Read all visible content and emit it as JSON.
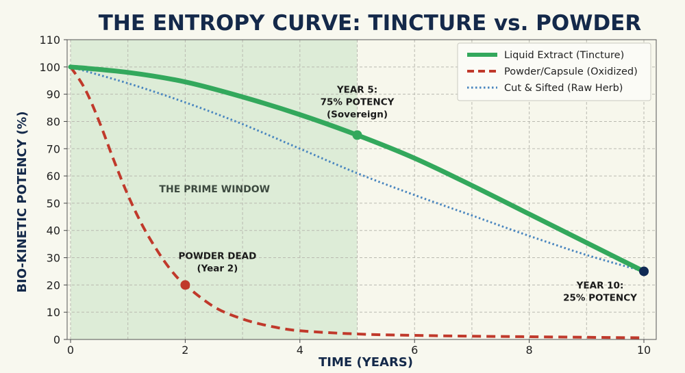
{
  "chart_data": {
    "type": "line",
    "title": "THE ENTROPY CURVE: TINCTURE vs. POWDER",
    "xlabel": "TIME (YEARS)",
    "ylabel": "BIO-KINETIC POTENCY (%)",
    "xlim": [
      0,
      10
    ],
    "ylim": [
      0,
      110
    ],
    "xticks": [
      0,
      2,
      4,
      6,
      8,
      10
    ],
    "yticks": [
      0,
      10,
      20,
      30,
      40,
      50,
      60,
      70,
      80,
      90,
      100,
      110
    ],
    "grid": true,
    "legend_position": "top-right",
    "shaded_region": {
      "x": [
        0,
        5
      ],
      "label": "THE PRIME WINDOW",
      "color": "#d8ead4"
    },
    "series": [
      {
        "name": "Liquid Extract (Tincture)",
        "style": "solid",
        "color": "#33a85c",
        "x": [
          0,
          1,
          2,
          3,
          4,
          5,
          6,
          7,
          8,
          9,
          10
        ],
        "y": [
          100,
          98,
          94.5,
          89,
          82.5,
          75,
          66.5,
          56.5,
          46,
          35.5,
          25
        ]
      },
      {
        "name": "Powder/Capsule (Oxidized)",
        "style": "dashed",
        "color": "#c0392b",
        "x": [
          0,
          0.25,
          0.5,
          0.75,
          1,
          1.25,
          1.5,
          1.75,
          2,
          2.5,
          3,
          3.5,
          4,
          5,
          6,
          7,
          8,
          9,
          10
        ],
        "y": [
          100,
          92,
          80,
          66,
          53,
          42,
          33,
          25.5,
          20,
          12,
          7.5,
          4.8,
          3.2,
          2,
          1.5,
          1.2,
          1,
          0.8,
          0.6
        ]
      },
      {
        "name": "Cut & Sifted (Raw Herb)",
        "style": "dotted",
        "color": "#4a86bf",
        "x": [
          0,
          1,
          2,
          3,
          4,
          5,
          6,
          7,
          8,
          9,
          10
        ],
        "y": [
          100,
          94,
          87,
          79,
          70,
          61,
          53,
          45.5,
          38,
          31,
          25
        ]
      }
    ],
    "markers": [
      {
        "x": 5,
        "y": 75,
        "color": "#33a85c"
      },
      {
        "x": 2,
        "y": 20,
        "color": "#c0392b"
      },
      {
        "x": 10,
        "y": 25,
        "color": "#102a55"
      }
    ],
    "annotations": [
      {
        "lines": [
          "YEAR 5:",
          "75% POTENCY",
          "(Sovereign)"
        ],
        "x": 5,
        "y": 75,
        "placement": "above"
      },
      {
        "lines": [
          "POWDER DEAD",
          "(Year 2)"
        ],
        "x": 2,
        "y": 20,
        "placement": "above"
      },
      {
        "lines": [
          "YEAR 10:",
          "25% POTENCY"
        ],
        "x": 10,
        "y": 25,
        "placement": "below"
      }
    ]
  }
}
